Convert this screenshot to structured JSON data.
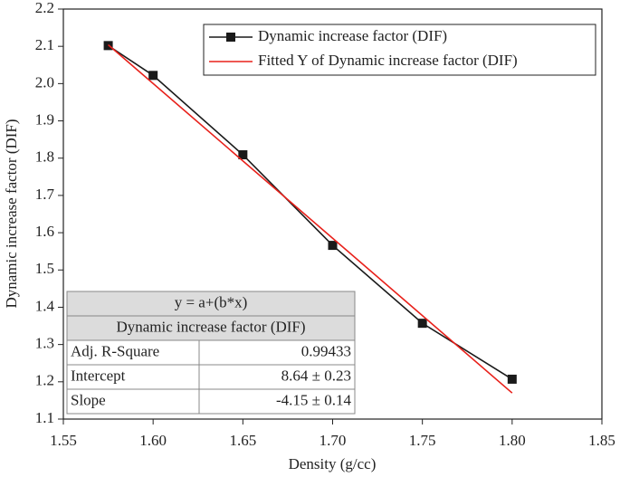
{
  "chart_data": {
    "type": "line",
    "x_label": "Density (g/cc)",
    "y_label": "Dynamic increase factor (DIF)",
    "xlim": [
      1.55,
      1.85
    ],
    "xticks": [
      1.55,
      {
        "value": 1.6,
        "label": "1.60"
      },
      1.65,
      {
        "value": 1.7,
        "label": "1.70"
      },
      1.75,
      {
        "value": 1.8,
        "label": "1.80"
      },
      1.85
    ],
    "ylim": [
      1.1,
      2.2
    ],
    "yticks": [
      1.1,
      1.2,
      1.3,
      1.4,
      1.5,
      1.6,
      1.7,
      1.8,
      1.9,
      {
        "value": 2.0,
        "label": "2.0"
      },
      2.1,
      2.2
    ],
    "grid": false,
    "legend": "top-right",
    "series": [
      {
        "name": "Dynamic increase factor (DIF)",
        "color": "#1a1a1a",
        "marker": "square",
        "x": [
          1.575,
          1.6,
          1.65,
          1.7,
          1.75,
          1.8
        ],
        "values": [
          2.102,
          2.022,
          1.809,
          1.566,
          1.357,
          1.207
        ]
      },
      {
        "name": "Fitted Y of Dynamic increase factor (DIF)",
        "color": "#e8201a",
        "x": [
          1.575,
          1.8
        ],
        "values": [
          2.104,
          1.17
        ]
      }
    ],
    "fit_table": {
      "equation": "y = a+(b*x)",
      "header": "Dynamic increase factor (DIF)",
      "rows": [
        [
          "Adj. R-Square",
          "0.99433"
        ],
        [
          "Intercept",
          "8.64 ± 0.23"
        ],
        [
          "Slope",
          "-4.15 ± 0.14"
        ]
      ]
    }
  }
}
